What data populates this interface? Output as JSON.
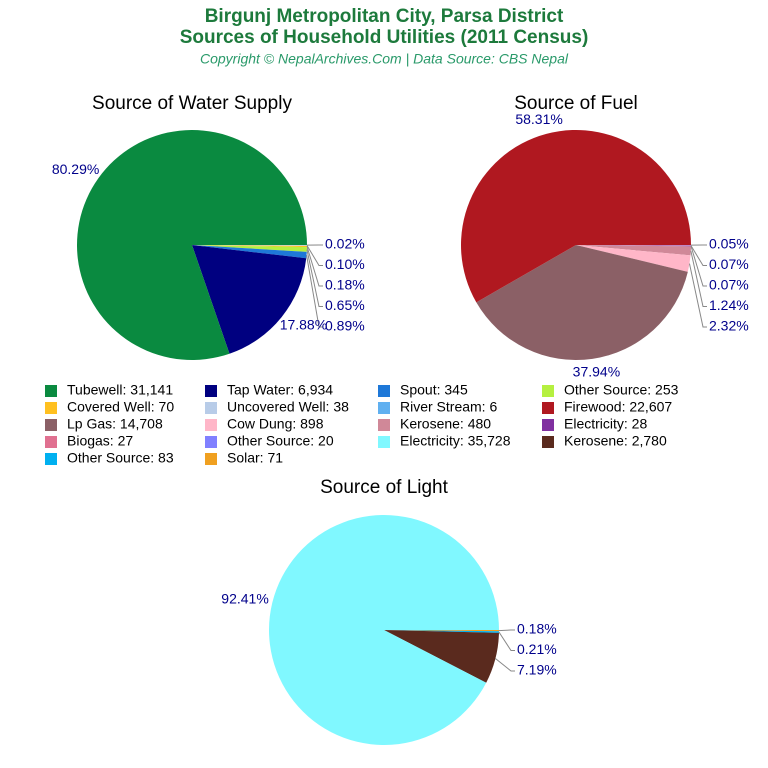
{
  "header": {
    "title": [
      "Birgunj Metropolitan City, Parsa District",
      "Sources of Household Utilities (2011 Census)"
    ],
    "subtitle": "Copyright © NepalArchives.Com | Data Source: CBS Nepal"
  },
  "chart_data": [
    {
      "type": "pie",
      "title": "Source of Water Supply",
      "legend": [
        "Tubewell: 31,141",
        "Tap Water: 6,934",
        "Spout: 345",
        "Other Source: 253",
        "Covered Well: 70",
        "Uncovered Well: 38",
        "River Stream: 6"
      ],
      "colors": [
        "#0a8a40",
        "#000080",
        "#1e78d8",
        "#b5f040",
        "#ffc020",
        "#b8cce8",
        "#60b0f0"
      ],
      "values": [
        80.29,
        17.88,
        0.89,
        0.65,
        0.18,
        0.1,
        0.02
      ],
      "value_labels": [
        "80.29%",
        "17.88%",
        "0.89%",
        "0.65%",
        "0.18%",
        "0.10%",
        "0.02%"
      ]
    },
    {
      "type": "pie",
      "title": "Source of Fuel",
      "legend": [
        "Firewood: 22,607",
        "Lp Gas: 14,708",
        "Cow Dung: 898",
        "Kerosene: 480",
        "Electricity: 28",
        "Biogas: 27",
        "Other Source: 20"
      ],
      "colors": [
        "#b01820",
        "#8b6066",
        "#ffb6c8",
        "#d08898",
        "#8030a0",
        "#e07090",
        "#8080ff"
      ],
      "values": [
        58.31,
        37.94,
        2.32,
        1.24,
        0.07,
        0.07,
        0.05
      ],
      "value_labels": [
        "58.31%",
        "37.94%",
        "2.32%",
        "1.24%",
        "0.07%",
        "0.07%",
        "0.05%"
      ]
    },
    {
      "type": "pie",
      "title": "Source of Light",
      "legend": [
        "Electricity: 35,728",
        "Kerosene: 2,780",
        "Other Source: 83",
        "Solar: 71"
      ],
      "colors": [
        "#80f8ff",
        "#5a2a1e",
        "#00b0f0",
        "#f0a020"
      ],
      "values": [
        92.41,
        7.19,
        0.21,
        0.18
      ],
      "value_labels": [
        "92.41%",
        "7.19%",
        "0.21%",
        "0.18%"
      ]
    }
  ]
}
